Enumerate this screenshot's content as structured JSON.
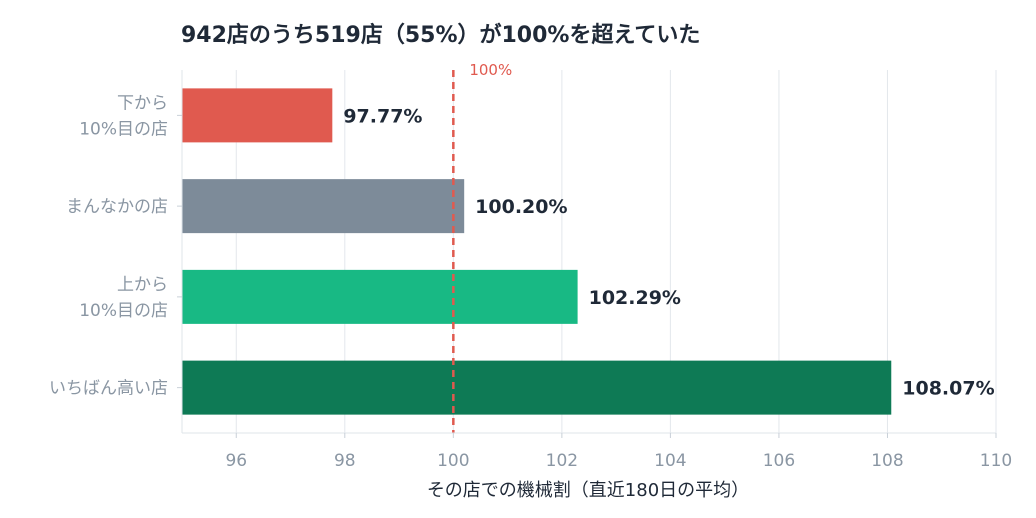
{
  "chart_data": {
    "type": "bar",
    "orientation": "horizontal",
    "title": "942店のうち519店（55%）が100%を超えていた",
    "xlabel": "その店での機械割（直近180日の平均）",
    "ylabel": "",
    "xlim": [
      95,
      110
    ],
    "xticks": [
      96,
      98,
      100,
      102,
      104,
      106,
      108,
      110
    ],
    "grid": true,
    "categories": [
      [
        "下から",
        "10%目の店"
      ],
      [
        "まんなかの店"
      ],
      [
        "上から",
        "10%目の店"
      ],
      [
        "いちばん高い店"
      ]
    ],
    "values": [
      97.77,
      100.2,
      102.29,
      108.07
    ],
    "value_labels": [
      "97.77%",
      "100.20%",
      "102.29%",
      "108.07%"
    ],
    "colors": [
      "#e05a4f",
      "#7d8b99",
      "#18b984",
      "#0e7a55"
    ],
    "reference_line": {
      "value": 100,
      "label": "100%",
      "color": "#e05a4f"
    }
  }
}
